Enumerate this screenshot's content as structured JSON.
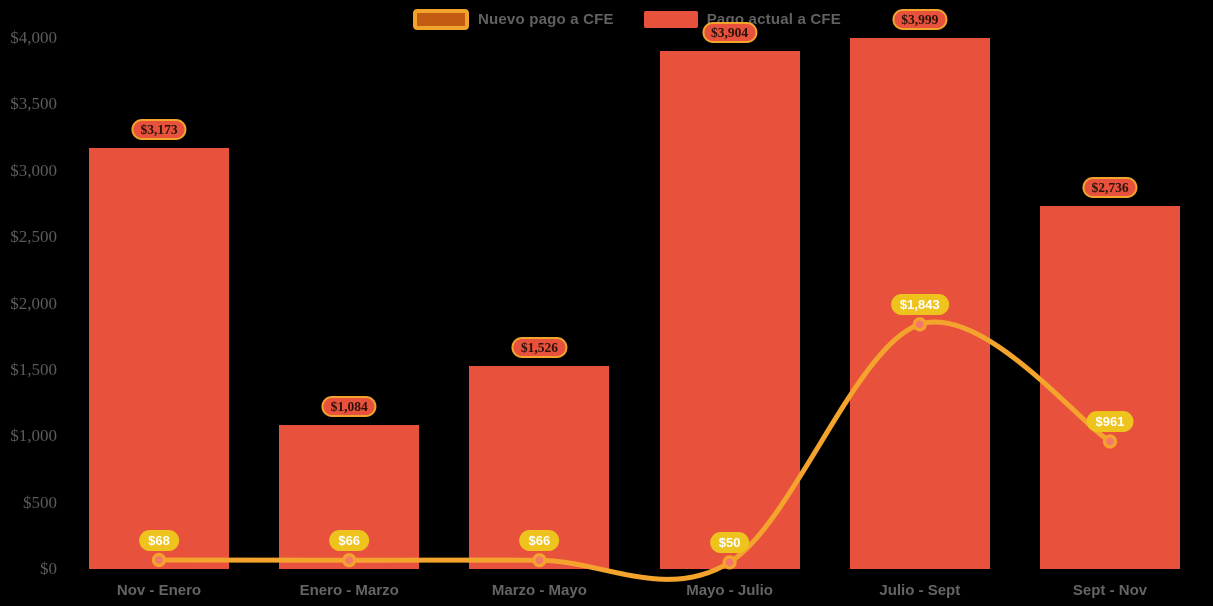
{
  "chart_data": {
    "type": "bar",
    "variant": "combo-bar-line",
    "title": "",
    "categories": [
      "Nov - Enero",
      "Enero - Marzo",
      "Marzo - Mayo",
      "Mayo - Julio",
      "Julio - Sept",
      "Sept - Nov"
    ],
    "series": [
      {
        "name": "Nuevo pago a CFE",
        "type": "line",
        "values": [
          68,
          66,
          66,
          50,
          1843,
          961
        ],
        "labels": [
          "$68",
          "$66",
          "$66",
          "$50",
          "$1,843",
          "$961"
        ],
        "color": "#F4A32C",
        "point_fill": "#F3786A",
        "label_bg": "#EFC31E",
        "label_text_color": "#FFFFFF"
      },
      {
        "name": "Pago actual a CFE",
        "type": "bar",
        "values": [
          3173,
          1084,
          1526,
          3904,
          3999,
          2736
        ],
        "labels": [
          "$3,173",
          "$1,084",
          "$1,526",
          "$3,904",
          "$3,999",
          "$2,736"
        ],
        "color": "#E8513C",
        "label_bg": "#E8513C",
        "label_border": "#F2A42D",
        "label_text_color": "#2B1208"
      }
    ],
    "y_axis": {
      "ticks": [
        "$0",
        "$500",
        "$1,000",
        "$1,500",
        "$2,000",
        "$2,500",
        "$3,000",
        "$3,500",
        "$4,000"
      ],
      "values": [
        0,
        500,
        1000,
        1500,
        2000,
        2500,
        3000,
        3500,
        4000
      ],
      "min": 0,
      "max": 4000
    },
    "legend_position": "top-center",
    "grid": false,
    "background": "#000000",
    "axis_text_color": "#5c5c5c"
  }
}
